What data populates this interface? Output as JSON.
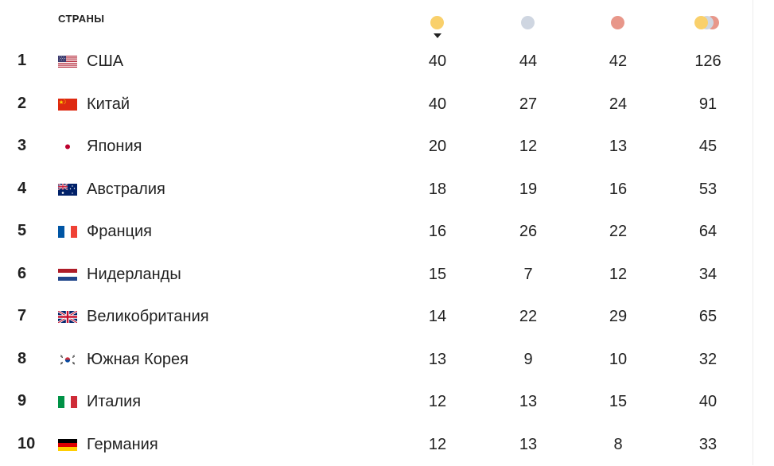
{
  "header": {
    "countries_label": "СТРАНЫ",
    "gold_icon": "gold-medal-icon",
    "silver_icon": "silver-medal-icon",
    "bronze_icon": "bronze-medal-icon",
    "total_icon": "total-medals-icon",
    "sorted_by": "gold",
    "sort_icon": "sort-desc-icon"
  },
  "colors": {
    "gold": "#f9d06b",
    "silver": "#cfd6e1",
    "bronze": "#e8978a",
    "text": "#222222"
  },
  "rows": [
    {
      "rank": "1",
      "country": "США",
      "flag": "flag-usa-icon",
      "gold": "40",
      "silver": "44",
      "bronze": "42",
      "total": "126"
    },
    {
      "rank": "2",
      "country": "Китай",
      "flag": "flag-china-icon",
      "gold": "40",
      "silver": "27",
      "bronze": "24",
      "total": "91"
    },
    {
      "rank": "3",
      "country": "Япония",
      "flag": "flag-japan-icon",
      "gold": "20",
      "silver": "12",
      "bronze": "13",
      "total": "45"
    },
    {
      "rank": "4",
      "country": "Австралия",
      "flag": "flag-australia-icon",
      "gold": "18",
      "silver": "19",
      "bronze": "16",
      "total": "53"
    },
    {
      "rank": "5",
      "country": "Франция",
      "flag": "flag-france-icon",
      "gold": "16",
      "silver": "26",
      "bronze": "22",
      "total": "64"
    },
    {
      "rank": "6",
      "country": "Нидерланды",
      "flag": "flag-netherlands-icon",
      "gold": "15",
      "silver": "7",
      "bronze": "12",
      "total": "34"
    },
    {
      "rank": "7",
      "country": "Великобритания",
      "flag": "flag-uk-icon",
      "gold": "14",
      "silver": "22",
      "bronze": "29",
      "total": "65"
    },
    {
      "rank": "8",
      "country": "Южная Корея",
      "flag": "flag-south-korea-icon",
      "gold": "13",
      "silver": "9",
      "bronze": "10",
      "total": "32"
    },
    {
      "rank": "9",
      "country": "Италия",
      "flag": "flag-italy-icon",
      "gold": "12",
      "silver": "13",
      "bronze": "15",
      "total": "40"
    },
    {
      "rank": "10",
      "country": "Германия",
      "flag": "flag-germany-icon",
      "gold": "12",
      "silver": "13",
      "bronze": "8",
      "total": "33"
    }
  ]
}
